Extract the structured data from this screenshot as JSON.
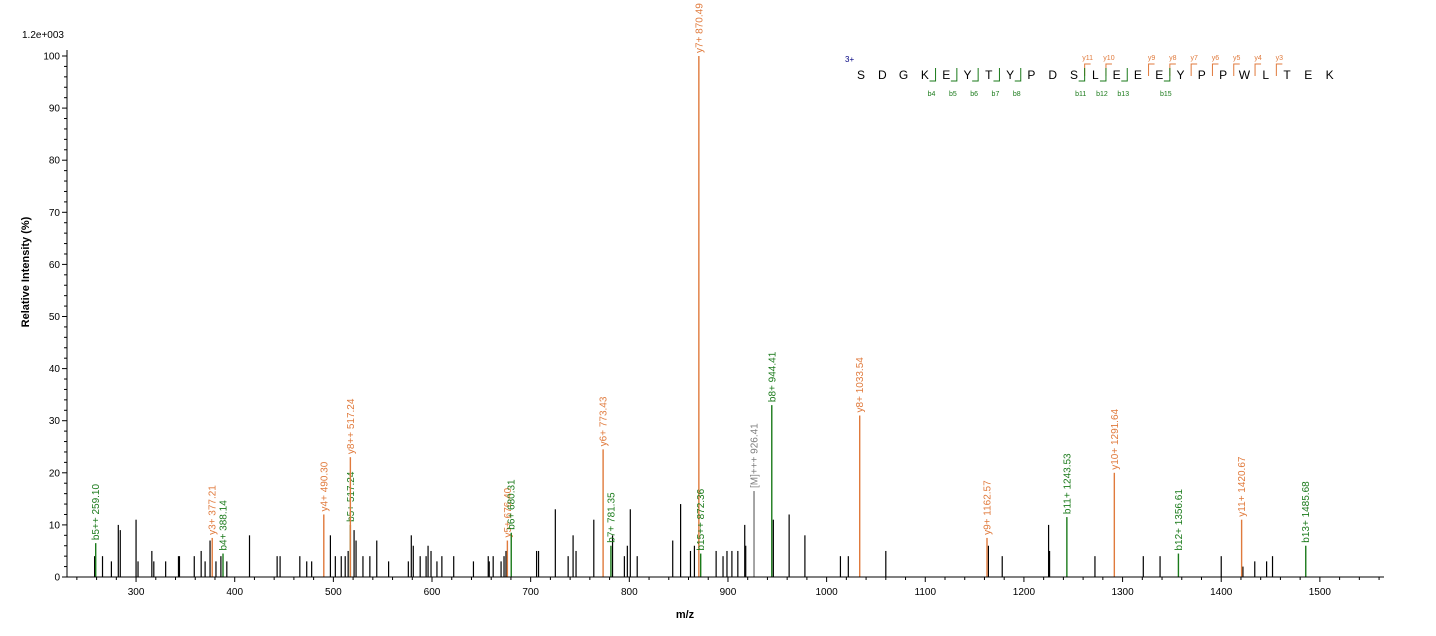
{
  "chart_data": {
    "type": "bar",
    "title": "",
    "scale_label": "1.2e+003",
    "xlabel": "m/z",
    "ylabel": "Relative   Intensity (%)",
    "xlim": [
      230,
      1565
    ],
    "ylim": [
      0,
      100
    ],
    "x_ticks": [
      300,
      400,
      500,
      600,
      700,
      800,
      900,
      1000,
      1100,
      1200,
      1300,
      1400,
      1500
    ],
    "y_ticks": [
      0,
      10,
      20,
      30,
      40,
      50,
      60,
      70,
      80,
      90,
      100
    ],
    "colors": {
      "b": "#1a7a1a",
      "y": "#e07a3c",
      "other": "#7f7f7f",
      "unassigned": "#000000",
      "charge": "#000080"
    },
    "unassigned_peaks": [
      [
        258,
        4
      ],
      [
        266,
        4
      ],
      [
        275,
        3
      ],
      [
        282,
        10
      ],
      [
        284,
        9
      ],
      [
        300,
        11
      ],
      [
        302,
        3
      ],
      [
        316,
        5
      ],
      [
        318,
        3
      ],
      [
        330,
        3
      ],
      [
        343,
        4
      ],
      [
        344,
        4
      ],
      [
        359,
        4
      ],
      [
        366,
        5
      ],
      [
        370,
        3
      ],
      [
        375,
        7
      ],
      [
        381,
        3
      ],
      [
        386,
        4
      ],
      [
        392,
        3
      ],
      [
        415,
        8
      ],
      [
        443,
        4
      ],
      [
        446,
        4
      ],
      [
        466,
        4
      ],
      [
        473,
        3
      ],
      [
        478,
        3
      ],
      [
        497,
        8
      ],
      [
        502,
        4
      ],
      [
        508,
        4
      ],
      [
        512,
        4
      ],
      [
        515,
        5
      ],
      [
        521,
        9
      ],
      [
        523,
        7
      ],
      [
        530,
        4
      ],
      [
        537,
        4
      ],
      [
        544,
        7
      ],
      [
        556,
        3
      ],
      [
        576,
        3
      ],
      [
        579,
        8
      ],
      [
        581,
        6
      ],
      [
        588,
        4
      ],
      [
        594,
        4
      ],
      [
        596,
        6
      ],
      [
        599,
        5
      ],
      [
        605,
        3
      ],
      [
        610,
        4
      ],
      [
        622,
        4
      ],
      [
        642,
        3
      ],
      [
        657,
        4
      ],
      [
        658,
        3
      ],
      [
        662,
        4
      ],
      [
        670,
        3
      ],
      [
        673,
        4
      ],
      [
        675,
        5
      ],
      [
        706,
        5
      ],
      [
        708,
        5
      ],
      [
        725,
        13
      ],
      [
        738,
        4
      ],
      [
        743,
        8
      ],
      [
        746,
        5
      ],
      [
        764,
        11
      ],
      [
        783,
        8
      ],
      [
        795,
        4
      ],
      [
        798,
        6
      ],
      [
        801,
        13
      ],
      [
        808,
        4
      ],
      [
        844,
        7
      ],
      [
        852,
        14
      ],
      [
        862,
        5
      ],
      [
        866,
        6
      ],
      [
        888,
        5
      ],
      [
        895,
        4
      ],
      [
        899,
        5
      ],
      [
        904,
        5
      ],
      [
        910,
        5
      ],
      [
        917,
        10
      ],
      [
        918,
        6
      ],
      [
        946,
        11
      ],
      [
        962,
        12
      ],
      [
        978,
        8
      ],
      [
        1014,
        4
      ],
      [
        1022,
        4
      ],
      [
        1060,
        5
      ],
      [
        1164,
        6
      ],
      [
        1178,
        4
      ],
      [
        1225,
        10
      ],
      [
        1226,
        5
      ],
      [
        1272,
        4
      ],
      [
        1321,
        4
      ],
      [
        1338,
        4
      ],
      [
        1400,
        4
      ],
      [
        1422,
        2
      ],
      [
        1434,
        3
      ],
      [
        1446,
        3
      ],
      [
        1452,
        4
      ]
    ],
    "annotated_peaks": [
      {
        "mz": 259.1,
        "intensity": 6.5,
        "label": "b5++ 259.10",
        "ion": "b"
      },
      {
        "mz": 377.21,
        "intensity": 7.5,
        "label": "y3+ 377.21",
        "ion": "y"
      },
      {
        "mz": 388.14,
        "intensity": 4.5,
        "label": "b4+ 388.14",
        "ion": "b"
      },
      {
        "mz": 490.3,
        "intensity": 12,
        "label": "y4+ 490.30",
        "ion": "y"
      },
      {
        "mz": 517.24,
        "intensity": 10,
        "label": "b5+ 517.24",
        "ion": "b"
      },
      {
        "mz": 517.24,
        "intensity": 23,
        "label": "y8++ 517.24",
        "ion": "y"
      },
      {
        "mz": 676.4,
        "intensity": 7,
        "label": "y5+ 676.40",
        "ion": "y"
      },
      {
        "mz": 680.31,
        "intensity": 8.5,
        "label": "b6+ 680.31",
        "ion": "b"
      },
      {
        "mz": 773.43,
        "intensity": 24.5,
        "label": "y6+ 773.43",
        "ion": "y"
      },
      {
        "mz": 781.35,
        "intensity": 6,
        "label": "b7+ 781.35",
        "ion": "b"
      },
      {
        "mz": 870.49,
        "intensity": 100,
        "label": "y7+ 870.49",
        "ion": "y"
      },
      {
        "mz": 872.36,
        "intensity": 4.5,
        "label": "b15++ 872.36",
        "ion": "b"
      },
      {
        "mz": 926.41,
        "intensity": 16.5,
        "label": "[M]+++ 926.41",
        "ion": "other"
      },
      {
        "mz": 944.41,
        "intensity": 33,
        "label": "b8+ 944.41",
        "ion": "b"
      },
      {
        "mz": 1033.54,
        "intensity": 31,
        "label": "y8+ 1033.54",
        "ion": "y"
      },
      {
        "mz": 1162.57,
        "intensity": 7.5,
        "label": "y9+ 1162.57",
        "ion": "y"
      },
      {
        "mz": 1243.53,
        "intensity": 11.5,
        "label": "b11+ 1243.53",
        "ion": "b"
      },
      {
        "mz": 1291.64,
        "intensity": 20,
        "label": "y10+ 1291.64",
        "ion": "y"
      },
      {
        "mz": 1356.61,
        "intensity": 4.5,
        "label": "b12+ 1356.61",
        "ion": "b"
      },
      {
        "mz": 1420.67,
        "intensity": 11,
        "label": "y11+ 1420.67",
        "ion": "y"
      },
      {
        "mz": 1485.68,
        "intensity": 6,
        "label": "b13+ 1485.68",
        "ion": "b"
      }
    ],
    "sequence": {
      "charge": "3+",
      "residues": [
        "S",
        "D",
        "G",
        "K",
        "E",
        "Y",
        "T",
        "Y",
        "P",
        "D",
        "S",
        "L",
        "E",
        "E",
        "E",
        "Y",
        "P",
        "P",
        "W",
        "L",
        "T",
        "E",
        "K"
      ],
      "y_ions": [
        {
          "label": "y11",
          "after": 11
        },
        {
          "label": "y10",
          "after": 12
        },
        {
          "label": "y9",
          "after": 14
        },
        {
          "label": "y8",
          "after": 15
        },
        {
          "label": "y7",
          "after": 16
        },
        {
          "label": "y6",
          "after": 17
        },
        {
          "label": "y5",
          "after": 18
        },
        {
          "label": "y4",
          "after": 19
        },
        {
          "label": "y3",
          "after": 20
        }
      ],
      "b_ions": [
        {
          "label": "b4",
          "after": 4
        },
        {
          "label": "b5",
          "after": 5
        },
        {
          "label": "b6",
          "after": 6
        },
        {
          "label": "b7",
          "after": 7
        },
        {
          "label": "b8",
          "after": 8
        },
        {
          "label": "b11",
          "after": 11
        },
        {
          "label": "b12",
          "after": 12
        },
        {
          "label": "b13",
          "after": 13
        },
        {
          "label": "b15",
          "after": 15
        }
      ]
    }
  }
}
